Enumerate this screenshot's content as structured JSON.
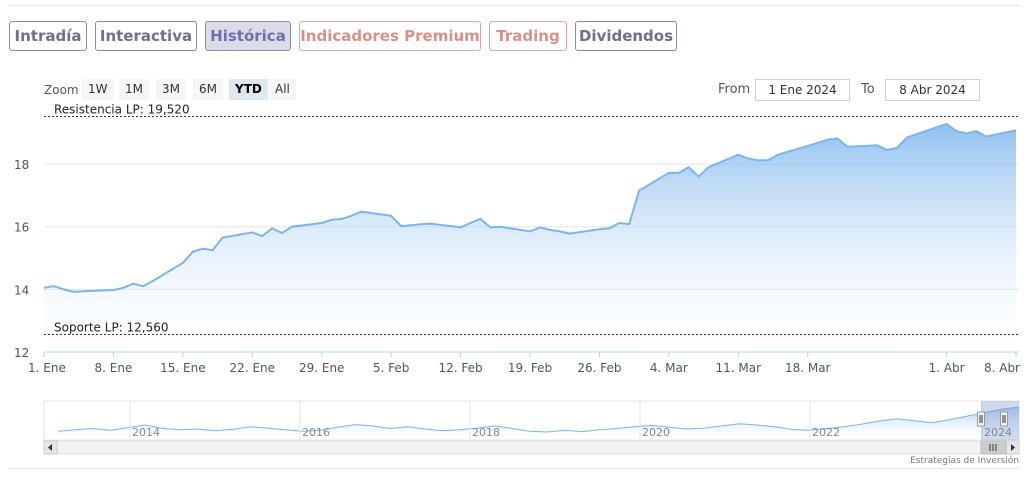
{
  "tabs": [
    {
      "label": "Intradía",
      "state": "normal"
    },
    {
      "label": "Interactiva",
      "state": "normal"
    },
    {
      "label": "Histórica",
      "state": "active"
    },
    {
      "label": "Indicadores Premium",
      "state": "premium"
    },
    {
      "label": "Trading",
      "state": "premium"
    },
    {
      "label": "Dividendos",
      "state": "normal"
    }
  ],
  "toolbar": {
    "zoom_label": "Zoom",
    "zoom_buttons": [
      "1W",
      "1M",
      "3M",
      "6M",
      "YTD",
      "All"
    ],
    "zoom_selected": "YTD",
    "from_label": "From",
    "from_value": "1 Ene 2024",
    "to_label": "To",
    "to_value": "8 Abr 2024"
  },
  "colors": {
    "line": "#7cb5ec",
    "area_top": "#7cb5ec",
    "area_bottom": "#ffffff",
    "tab_border": "#8a8aa8",
    "tab_text": "#6f6f8e",
    "tab_premium": "#d99088",
    "tab_active_bg": "#dcdce8"
  },
  "chart_data": {
    "type": "area",
    "ylim": [
      12,
      19.6
    ],
    "yticks": [
      12,
      14,
      16,
      18
    ],
    "ytick_labels": [
      "12",
      "14",
      "16",
      "18"
    ],
    "xlim": [
      "2024-01-01",
      "2024-04-08"
    ],
    "xticks": [
      {
        "date": "2024-01-01",
        "label": "1. Ene"
      },
      {
        "date": "2024-01-08",
        "label": "8. Ene"
      },
      {
        "date": "2024-01-15",
        "label": "15. Ene"
      },
      {
        "date": "2024-01-22",
        "label": "22. Ene"
      },
      {
        "date": "2024-01-29",
        "label": "29. Ene"
      },
      {
        "date": "2024-02-05",
        "label": "5. Feb"
      },
      {
        "date": "2024-02-12",
        "label": "12. Feb"
      },
      {
        "date": "2024-02-19",
        "label": "19. Feb"
      },
      {
        "date": "2024-02-26",
        "label": "26. Feb"
      },
      {
        "date": "2024-03-04",
        "label": "4. Mar"
      },
      {
        "date": "2024-03-11",
        "label": "11. Mar"
      },
      {
        "date": "2024-03-18",
        "label": "18. Mar"
      },
      {
        "date": "2024-04-01",
        "label": "1. Abr"
      },
      {
        "date": "2024-04-08",
        "label": "8. Abr"
      }
    ],
    "plot_lines": [
      {
        "label": "Resistencia LP: 19,520",
        "value": 19.52
      },
      {
        "label": "Soporte LP: 12,560",
        "value": 12.56
      }
    ],
    "grid": true,
    "series": [
      {
        "points": [
          [
            "2024-01-01",
            14.05
          ],
          [
            "2024-01-02",
            14.1
          ],
          [
            "2024-01-03",
            14.0
          ],
          [
            "2024-01-04",
            13.92
          ],
          [
            "2024-01-05",
            13.94
          ],
          [
            "2024-01-08",
            13.98
          ],
          [
            "2024-01-09",
            14.05
          ],
          [
            "2024-01-10",
            14.18
          ],
          [
            "2024-01-11",
            14.1
          ],
          [
            "2024-01-12",
            14.27
          ],
          [
            "2024-01-15",
            14.85
          ],
          [
            "2024-01-16",
            15.2
          ],
          [
            "2024-01-17",
            15.3
          ],
          [
            "2024-01-18",
            15.25
          ],
          [
            "2024-01-19",
            15.65
          ],
          [
            "2024-01-22",
            15.82
          ],
          [
            "2024-01-23",
            15.7
          ],
          [
            "2024-01-24",
            15.95
          ],
          [
            "2024-01-25",
            15.8
          ],
          [
            "2024-01-26",
            16.0
          ],
          [
            "2024-01-29",
            16.12
          ],
          [
            "2024-01-30",
            16.22
          ],
          [
            "2024-01-31",
            16.25
          ],
          [
            "2024-02-01",
            16.35
          ],
          [
            "2024-02-02",
            16.48
          ],
          [
            "2024-02-05",
            16.35
          ],
          [
            "2024-02-06",
            16.02
          ],
          [
            "2024-02-07",
            16.05
          ],
          [
            "2024-02-08",
            16.08
          ],
          [
            "2024-02-09",
            16.1
          ],
          [
            "2024-02-12",
            15.98
          ],
          [
            "2024-02-13",
            16.12
          ],
          [
            "2024-02-14",
            16.25
          ],
          [
            "2024-02-15",
            15.98
          ],
          [
            "2024-02-16",
            16.0
          ],
          [
            "2024-02-19",
            15.85
          ],
          [
            "2024-02-20",
            15.98
          ],
          [
            "2024-02-21",
            15.9
          ],
          [
            "2024-02-22",
            15.85
          ],
          [
            "2024-02-23",
            15.78
          ],
          [
            "2024-02-26",
            15.92
          ],
          [
            "2024-02-27",
            15.95
          ],
          [
            "2024-02-28",
            16.12
          ],
          [
            "2024-02-29",
            16.08
          ],
          [
            "2024-03-01",
            17.15
          ],
          [
            "2024-03-04",
            17.72
          ],
          [
            "2024-03-05",
            17.72
          ],
          [
            "2024-03-06",
            17.9
          ],
          [
            "2024-03-07",
            17.6
          ],
          [
            "2024-03-08",
            17.9
          ],
          [
            "2024-03-11",
            18.3
          ],
          [
            "2024-03-12",
            18.18
          ],
          [
            "2024-03-13",
            18.12
          ],
          [
            "2024-03-14",
            18.12
          ],
          [
            "2024-03-15",
            18.3
          ],
          [
            "2024-03-18",
            18.58
          ],
          [
            "2024-03-19",
            18.68
          ],
          [
            "2024-03-20",
            18.78
          ],
          [
            "2024-03-21",
            18.82
          ],
          [
            "2024-03-22",
            18.55
          ],
          [
            "2024-03-25",
            18.6
          ],
          [
            "2024-03-26",
            18.45
          ],
          [
            "2024-03-27",
            18.52
          ],
          [
            "2024-03-28",
            18.85
          ],
          [
            "2024-04-01",
            19.28
          ],
          [
            "2024-04-02",
            19.05
          ],
          [
            "2024-04-03",
            18.98
          ],
          [
            "2024-04-04",
            19.05
          ],
          [
            "2024-04-05",
            18.88
          ],
          [
            "2024-04-08",
            19.08
          ]
        ]
      }
    ],
    "navigator": {
      "year_labels": [
        "2014",
        "2016",
        "2018",
        "2020",
        "2022",
        "2024"
      ],
      "values": [
        13.6,
        13.9,
        14.2,
        13.8,
        14.4,
        15.0,
        14.2,
        13.9,
        14.1,
        13.7,
        14.0,
        14.6,
        14.3,
        13.9,
        13.6,
        13.8,
        14.5,
        15.1,
        14.8,
        14.2,
        14.6,
        14.1,
        13.7,
        13.9,
        14.3,
        14.8,
        14.2,
        13.6,
        13.4,
        13.8,
        13.5,
        13.9,
        14.2,
        14.6,
        14.9,
        14.5,
        14.1,
        14.3,
        14.8,
        15.3,
        15.0,
        14.6,
        14.0,
        13.8,
        14.2,
        14.6,
        15.2,
        15.9,
        16.4,
        16.0,
        15.5,
        16.2,
        17.0,
        17.8,
        18.6,
        19.1
      ]
    }
  },
  "credit": "Estrategias de Inversión"
}
